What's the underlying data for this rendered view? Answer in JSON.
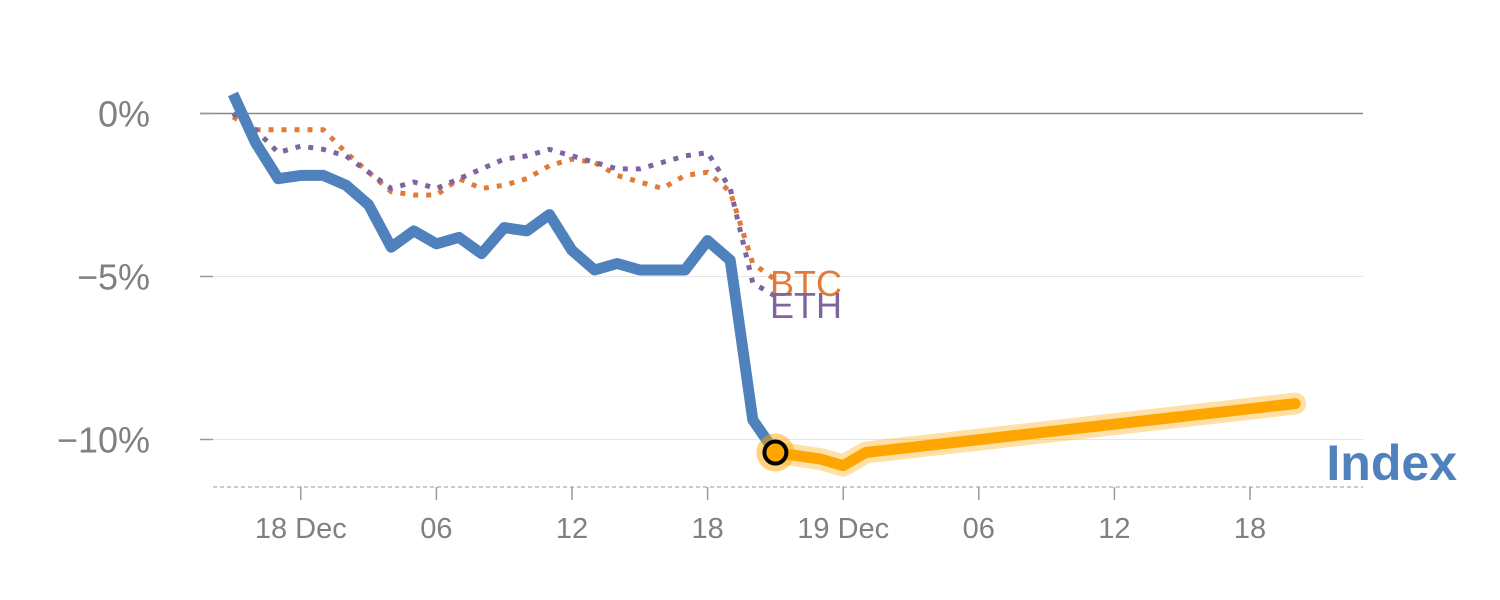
{
  "chart_data": {
    "type": "line",
    "title": "",
    "xlabel": "",
    "ylabel": "",
    "ylim": [
      -11.3,
      0.7
    ],
    "x_unit": "hours since first point",
    "y_ticks": [
      {
        "value": 0,
        "label": "0%"
      },
      {
        "value": -5,
        "label": "−5%"
      },
      {
        "value": -10,
        "label": "−10%"
      }
    ],
    "x_ticks": [
      {
        "value": 3,
        "label": "18 Dec"
      },
      {
        "value": 9,
        "label": "06"
      },
      {
        "value": 15,
        "label": "12"
      },
      {
        "value": 21,
        "label": "18"
      },
      {
        "value": 27,
        "label": "19 Dec"
      },
      {
        "value": 33,
        "label": "06"
      },
      {
        "value": 39,
        "label": "12"
      },
      {
        "value": 45,
        "label": "18"
      }
    ],
    "series": [
      {
        "name": "Index",
        "style": "solid",
        "color": "#4f81bd",
        "x": [
          0,
          1,
          2,
          3,
          4,
          5,
          6,
          7,
          8,
          9,
          10,
          11,
          12,
          13,
          14,
          15,
          16,
          17,
          18,
          19,
          20,
          21,
          22,
          23,
          24
        ],
        "y": [
          0.6,
          -0.9,
          -2.0,
          -1.9,
          -1.9,
          -2.2,
          -2.8,
          -4.1,
          -3.6,
          -4.0,
          -3.8,
          -4.3,
          -3.5,
          -3.6,
          -3.1,
          -4.2,
          -4.8,
          -4.6,
          -4.8,
          -4.8,
          -4.8,
          -3.9,
          -4.5,
          -9.4,
          -10.4
        ]
      },
      {
        "name": "Index (latest)",
        "style": "highlight",
        "color": "#ffa500",
        "x": [
          24,
          25,
          26,
          27,
          28,
          47
        ],
        "y": [
          -10.4,
          -10.5,
          -10.6,
          -10.8,
          -10.4,
          -8.9
        ]
      },
      {
        "name": "BTC",
        "style": "dotted",
        "color": "#e07b39",
        "x": [
          0,
          1,
          2,
          3,
          4,
          5,
          6,
          7,
          8,
          9,
          10,
          11,
          12,
          13,
          14,
          15,
          16,
          17,
          18,
          19,
          20,
          21,
          22,
          23,
          24
        ],
        "y": [
          -0.1,
          -0.5,
          -0.5,
          -0.5,
          -0.5,
          -1.2,
          -1.8,
          -2.4,
          -2.5,
          -2.5,
          -2.0,
          -2.3,
          -2.2,
          -2.0,
          -1.6,
          -1.4,
          -1.5,
          -1.9,
          -2.1,
          -2.3,
          -1.9,
          -1.8,
          -2.4,
          -4.6,
          -5.1
        ]
      },
      {
        "name": "ETH",
        "style": "dotted",
        "color": "#8064a2",
        "x": [
          0,
          1,
          2,
          3,
          4,
          5,
          6,
          7,
          8,
          9,
          10,
          11,
          12,
          13,
          14,
          15,
          16,
          17,
          18,
          19,
          20,
          21,
          22,
          23,
          24
        ],
        "y": [
          0.0,
          -0.5,
          -1.2,
          -1.0,
          -1.1,
          -1.3,
          -1.8,
          -2.3,
          -2.1,
          -2.3,
          -2.0,
          -1.7,
          -1.4,
          -1.3,
          -1.1,
          -1.3,
          -1.5,
          -1.7,
          -1.7,
          -1.5,
          -1.3,
          -1.2,
          -2.3,
          -5.2,
          -5.6
        ]
      }
    ],
    "labels": {
      "btc": "BTC",
      "eth": "ETH",
      "index": "Index"
    },
    "colors": {
      "gridline": "#e6e6e6",
      "zero_line": "#888888",
      "tick_text": "#808080",
      "marker_fill": "#ffa500",
      "marker_ring": "#000000"
    },
    "grid": true,
    "legend": "none",
    "latest_marker": {
      "x": 24,
      "y": -10.4
    }
  }
}
